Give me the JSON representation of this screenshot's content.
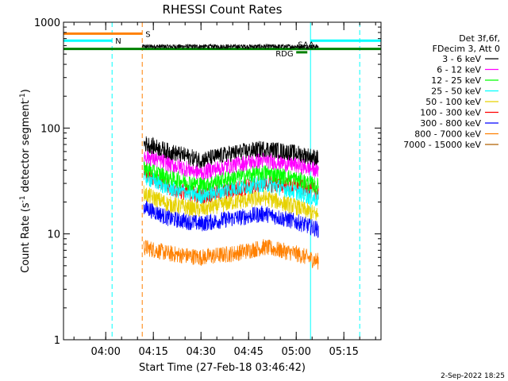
{
  "chart_data": {
    "type": "line",
    "title": "RHESSI Count Rates",
    "xlabel": "Start Time (27-Feb-18 03:46:42)",
    "ylabel_parts": [
      "Count Rate (s",
      "-1",
      " detector segment",
      "-1",
      ")"
    ],
    "yscale": "log",
    "ylim": [
      1,
      1000
    ],
    "xlim": [
      "03:46:42",
      "05:26:42"
    ],
    "x_ticks": [
      "04:00",
      "04:15",
      "04:30",
      "04:45",
      "05:00",
      "05:15"
    ],
    "y_ticks": [
      "1",
      "10",
      "100",
      "1000"
    ],
    "legend_header": [
      "Det 3f,6f,",
      "FDecim 3, Att 0"
    ],
    "series": [
      {
        "name": "3 - 6 keV",
        "color": "#000000",
        "x": [
          "04:12",
          "04:20",
          "04:30",
          "04:40",
          "04:50",
          "05:00",
          "05:07"
        ],
        "y": [
          72,
          60,
          50,
          58,
          64,
          58,
          52
        ]
      },
      {
        "name": "6 - 12 keV",
        "color": "#ff00ff",
        "x": [
          "04:12",
          "04:20",
          "04:30",
          "04:40",
          "04:50",
          "05:00",
          "05:07"
        ],
        "y": [
          55,
          46,
          38,
          45,
          50,
          45,
          40
        ]
      },
      {
        "name": "12 - 25 keV",
        "color": "#00ff00",
        "x": [
          "04:12",
          "04:20",
          "04:30",
          "04:40",
          "04:50",
          "05:00",
          "05:07"
        ],
        "y": [
          42,
          34,
          29,
          34,
          38,
          33,
          28
        ]
      },
      {
        "name": "25 - 50 keV",
        "color": "#00ffff",
        "x": [
          "04:12",
          "04:20",
          "04:30",
          "04:40",
          "04:50",
          "05:00",
          "05:07"
        ],
        "y": [
          35,
          27,
          23,
          27,
          30,
          25,
          21
        ]
      },
      {
        "name": "50 - 100 keV",
        "color": "#e6d200",
        "x": [
          "04:12",
          "04:20",
          "04:30",
          "04:40",
          "04:50",
          "05:00",
          "05:07"
        ],
        "y": [
          24,
          19,
          17,
          20,
          22,
          18,
          15
        ]
      },
      {
        "name": "100 - 300 keV",
        "color": "#ff0000",
        "x": [
          "04:12",
          "04:20",
          "04:30",
          "04:40",
          "04:50",
          "05:00",
          "05:07"
        ],
        "y": [
          40,
          27,
          23,
          26,
          30,
          28,
          25
        ]
      },
      {
        "name": "300 - 800 keV",
        "color": "#0000ff",
        "x": [
          "04:12",
          "04:20",
          "04:30",
          "04:40",
          "04:50",
          "05:00",
          "05:07"
        ],
        "y": [
          18,
          14,
          12.5,
          14,
          15.5,
          13,
          11
        ]
      },
      {
        "name": "800 - 7000 keV",
        "color": "#ff8000",
        "x": [
          "04:12",
          "04:20",
          "04:30",
          "04:40",
          "04:50",
          "05:00",
          "05:07"
        ],
        "y": [
          7.5,
          6.5,
          6,
          6.5,
          7.5,
          6.5,
          5.5
        ]
      },
      {
        "name": "7000 - 15000 keV",
        "color": "#b06000",
        "x": [],
        "y": []
      }
    ],
    "flag_bars": [
      {
        "label": "S",
        "color": "#ff8000",
        "start": "03:46:42",
        "end": "04:11:30",
        "level": 780
      },
      {
        "label": "N",
        "color": "#00ffff",
        "start": "03:46:42",
        "end": "04:02:00",
        "level": 670
      },
      {
        "label": "",
        "color": "#00ffff",
        "start": "05:04:30",
        "end": "05:26:42",
        "level": 670
      },
      {
        "label": "",
        "color": "#008000",
        "start": "03:46:42",
        "end": "05:26:42",
        "level": 560
      },
      {
        "label": "RDG",
        "color": "#008000",
        "start": "05:00:00",
        "end": "05:03:30",
        "level": 520
      }
    ],
    "flag_labels_extra": [
      "SAA"
    ],
    "vertical_markers": [
      {
        "x": "03:46:42",
        "color": "#00ffff",
        "style": "solid"
      },
      {
        "x": "04:02:00",
        "color": "#00ffff",
        "style": "dashed"
      },
      {
        "x": "04:11:30",
        "color": "#ff8000",
        "style": "dashed"
      },
      {
        "x": "05:04:30",
        "color": "#00ffff",
        "style": "solid"
      },
      {
        "x": "05:20:00",
        "color": "#00ffff",
        "style": "dashed"
      }
    ],
    "footer_date": "2-Sep-2022 18:25"
  }
}
